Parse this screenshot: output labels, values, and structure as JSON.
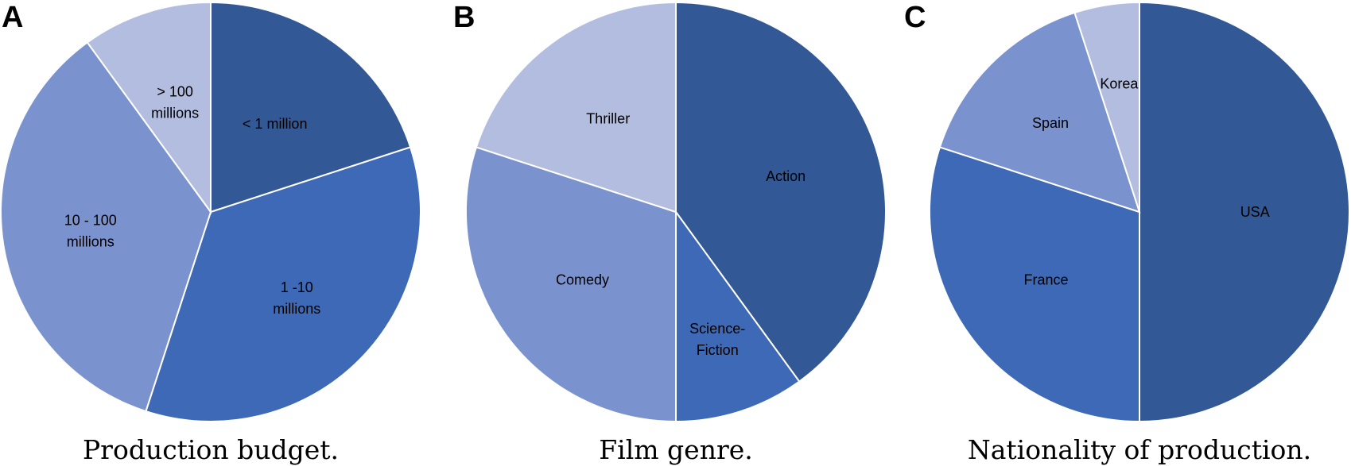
{
  "chart_data": [
    {
      "type": "pie",
      "panel": "A",
      "caption": "Production budget.",
      "slices": [
        {
          "label": "< 1 million",
          "lines": [
            "< 1 million"
          ],
          "value": 20,
          "color": "#325896"
        },
        {
          "label": "1 -10 millions",
          "lines": [
            "1 -10",
            "millions"
          ],
          "value": 35,
          "color": "#3e69b6"
        },
        {
          "label": "10 - 100 millions",
          "lines": [
            "10 - 100",
            "millions"
          ],
          "value": 35,
          "color": "#7a92ce"
        },
        {
          "label": "> 100 millions",
          "lines": [
            "> 100",
            "millions"
          ],
          "value": 10,
          "color": "#b2bddf"
        }
      ]
    },
    {
      "type": "pie",
      "panel": "B",
      "caption": "Film genre.",
      "slices": [
        {
          "label": "Action",
          "lines": [
            "Action"
          ],
          "value": 40,
          "color": "#325896"
        },
        {
          "label": "Science-Fiction",
          "lines": [
            "Science-",
            "Fiction"
          ],
          "value": 10,
          "color": "#3e69b6"
        },
        {
          "label": "Comedy",
          "lines": [
            "Comedy"
          ],
          "value": 30,
          "color": "#7a92ce"
        },
        {
          "label": "Thriller",
          "lines": [
            "Thriller"
          ],
          "value": 20,
          "color": "#b2bddf"
        }
      ]
    },
    {
      "type": "pie",
      "panel": "C",
      "caption": "Nationality of production.",
      "slices": [
        {
          "label": "USA",
          "lines": [
            "USA"
          ],
          "value": 50,
          "color": "#325896"
        },
        {
          "label": "France",
          "lines": [
            "France"
          ],
          "value": 30,
          "color": "#3e69b6"
        },
        {
          "label": "Spain",
          "lines": [
            "Spain"
          ],
          "value": 15,
          "color": "#7a92ce"
        },
        {
          "label": "Korea",
          "lines": [
            "Korea"
          ],
          "value": 5,
          "color": "#b2bddf"
        }
      ]
    }
  ]
}
